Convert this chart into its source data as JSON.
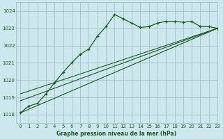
{
  "bg_color": "#cce8ee",
  "grid_color": "#99bbbb",
  "line_color": "#1a5c1a",
  "title": "Graphe pression niveau de la mer (hPa)",
  "xlim": [
    -0.5,
    23
  ],
  "ylim": [
    1017.5,
    1024.5
  ],
  "xticks": [
    0,
    1,
    2,
    3,
    4,
    5,
    6,
    7,
    8,
    9,
    10,
    11,
    12,
    13,
    14,
    15,
    16,
    17,
    18,
    19,
    20,
    21,
    22,
    23
  ],
  "yticks": [
    1018,
    1019,
    1020,
    1021,
    1022,
    1023,
    1024
  ],
  "series1_x": [
    0,
    1,
    2,
    3,
    4,
    5,
    6,
    7,
    8,
    9,
    10,
    11,
    12,
    13,
    14,
    15,
    16,
    17,
    18,
    19,
    20,
    21,
    22,
    23
  ],
  "series1_y": [
    1018.1,
    1018.5,
    1018.65,
    1019.2,
    1019.85,
    1020.45,
    1021.0,
    1021.5,
    1021.8,
    1022.55,
    1023.1,
    1023.8,
    1023.55,
    1023.3,
    1023.05,
    1023.1,
    1023.3,
    1023.4,
    1023.4,
    1023.35,
    1023.4,
    1023.1,
    1023.1,
    1023.0
  ],
  "series2_x": [
    0,
    23
  ],
  "series2_y": [
    1018.1,
    1023.0
  ],
  "series3_x": [
    0,
    23
  ],
  "series3_y": [
    1018.8,
    1023.0
  ],
  "series4_x": [
    0,
    23
  ],
  "series4_y": [
    1019.2,
    1023.0
  ]
}
